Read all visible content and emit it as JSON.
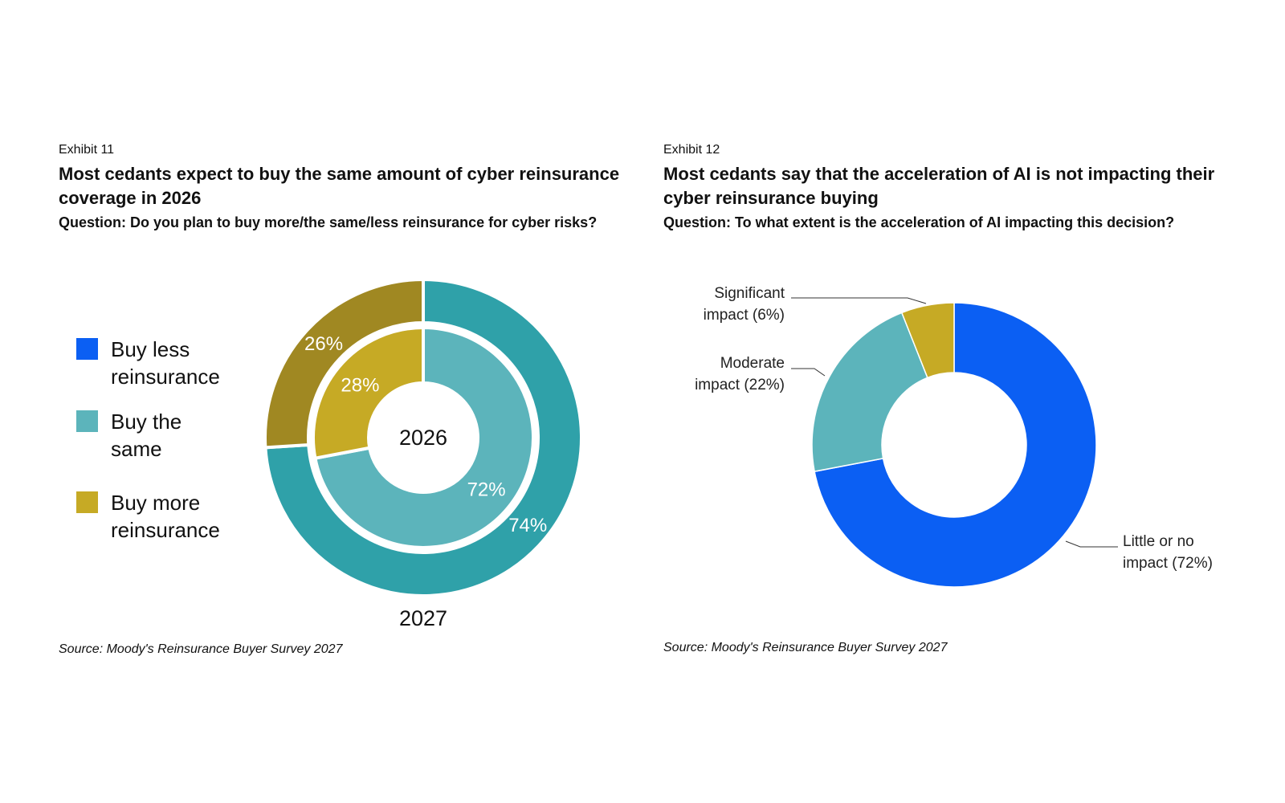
{
  "exhibit11": {
    "label": "Exhibit 11",
    "title": "Most cedants expect to buy the same amount of cyber reinsurance coverage in 2026",
    "question": "Question: Do you plan to buy more/the same/less reinsurance for cyber risks?",
    "source": "Source: Moody's Reinsurance Buyer Survey 2027",
    "legend": [
      {
        "label": "Buy less reinsurance",
        "color": "#0B5FF3"
      },
      {
        "label": "Buy the same",
        "color": "#5CB4BB"
      },
      {
        "label": "Buy more reinsurance",
        "color": "#C6AA25"
      }
    ]
  },
  "exhibit12": {
    "label": "Exhibit 12",
    "title": "Most cedants say that the acceleration of AI is not impacting their cyber reinsurance buying",
    "question": "Question: To what extent is the acceleration of AI impacting this decision?",
    "source": "Source: Moody's Reinsurance Buyer Survey 2027"
  },
  "chart_data": [
    {
      "type": "pie",
      "variant": "nested-donut",
      "rings": [
        {
          "name": "2026",
          "position": "inner",
          "slices": [
            {
              "label": "Buy the same",
              "value": 72,
              "display": "72%",
              "color": "#5CB4BB"
            },
            {
              "label": "Buy more reinsurance",
              "value": 28,
              "display": "28%",
              "color": "#C6AA25"
            }
          ]
        },
        {
          "name": "2027",
          "position": "outer",
          "slices": [
            {
              "label": "Buy the same",
              "value": 74,
              "display": "74%",
              "color": "#2FA1A9"
            },
            {
              "label": "Buy more reinsurance",
              "value": 26,
              "display": "26%",
              "color": "#A08822"
            }
          ]
        }
      ],
      "legend_position": "left"
    },
    {
      "type": "pie",
      "variant": "donut",
      "slices": [
        {
          "label_lines": [
            "Little or no",
            "impact (72%)"
          ],
          "value": 72,
          "color": "#0B5FF3"
        },
        {
          "label_lines": [
            "Moderate",
            "impact (22%)"
          ],
          "value": 22,
          "color": "#5CB4BB"
        },
        {
          "label_lines": [
            "Significant",
            "impact (6%)"
          ],
          "value": 6,
          "color": "#C6AA25"
        }
      ]
    }
  ]
}
